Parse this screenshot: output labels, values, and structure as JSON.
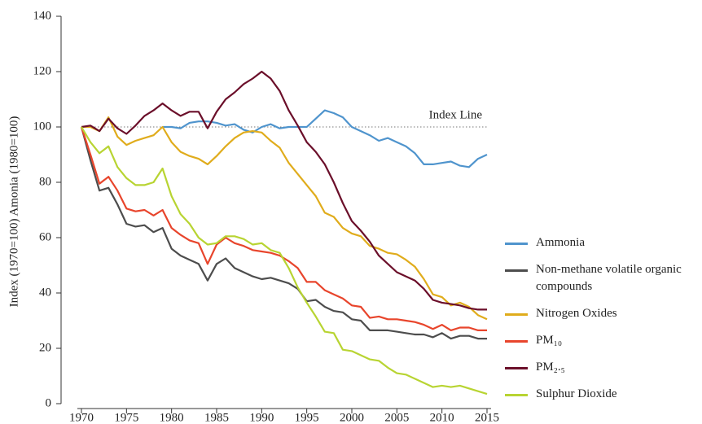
{
  "chart_data": {
    "type": "line",
    "ylabel": "Index (1970=100)  Amonia (1980=100)",
    "x": [
      1970,
      1971,
      1972,
      1973,
      1974,
      1975,
      1976,
      1977,
      1978,
      1979,
      1980,
      1981,
      1982,
      1983,
      1984,
      1985,
      1986,
      1987,
      1988,
      1989,
      1990,
      1991,
      1992,
      1993,
      1994,
      1995,
      1996,
      1997,
      1998,
      1999,
      2000,
      2001,
      2002,
      2003,
      2004,
      2005,
      2006,
      2007,
      2008,
      2009,
      2010,
      2011,
      2012,
      2013,
      2014,
      2015
    ],
    "xlim": [
      1970,
      2015
    ],
    "xticks": [
      1970,
      1975,
      1980,
      1985,
      1990,
      1995,
      2000,
      2005,
      2010,
      2015
    ],
    "ylim": [
      0,
      140
    ],
    "yticks": [
      0,
      20,
      40,
      60,
      80,
      100,
      120,
      140
    ],
    "index_line": {
      "label": "Index Line",
      "value": 100
    },
    "series": [
      {
        "name": "Ammonia",
        "color": "#4f94cd",
        "values": [
          null,
          null,
          null,
          null,
          null,
          null,
          null,
          null,
          null,
          100,
          100,
          99.5,
          101.5,
          102,
          102,
          101.5,
          100.5,
          101,
          99,
          98,
          100,
          101,
          99.5,
          100,
          100,
          100,
          103,
          106,
          105,
          103.5,
          100,
          98.5,
          97,
          95,
          96,
          94.5,
          93,
          90.5,
          86.5,
          86.5,
          87,
          87.5,
          86,
          85.5,
          88.5,
          90
        ]
      },
      {
        "name": "Non-methane volatile organic compounds",
        "color": "#4d4d4d",
        "values": [
          100,
          88,
          77,
          78,
          72,
          65,
          64,
          64.5,
          62,
          63.5,
          56,
          53.5,
          52,
          50.5,
          44.5,
          50.5,
          52.5,
          49,
          47.5,
          46,
          45,
          45.5,
          44.5,
          43.5,
          41.5,
          37,
          37.5,
          35,
          33.5,
          33,
          30.5,
          30,
          26.5,
          26.5,
          26.5,
          26,
          25.5,
          25,
          25,
          24,
          25.5,
          23.5,
          24.5,
          24.5,
          23.5,
          23.5
        ]
      },
      {
        "name": "Nitrogen Oxides",
        "color": "#e0ac1c",
        "values": [
          100,
          100,
          98.5,
          103.5,
          96.5,
          93.5,
          95,
          96,
          97,
          100,
          94.5,
          91,
          89.5,
          88.5,
          86.5,
          89.5,
          93,
          96,
          98,
          98.5,
          98,
          95,
          92.5,
          87,
          83,
          79,
          75,
          69,
          67.5,
          63.5,
          61.5,
          60.5,
          57,
          56,
          54.5,
          54,
          52,
          49.5,
          45,
          39.5,
          38.5,
          35.5,
          36.5,
          35,
          32,
          30.5
        ]
      },
      {
        "name": "PM₁₀",
        "color": "#e8452c",
        "values": [
          100,
          90,
          79.5,
          82,
          77,
          70.5,
          69.5,
          70,
          68,
          70,
          63.5,
          61,
          59,
          58,
          50.5,
          57.5,
          60,
          58,
          57,
          55.5,
          55,
          54.5,
          53.5,
          51.5,
          49,
          44,
          44,
          41,
          39.5,
          38,
          35.5,
          35,
          31,
          31.5,
          30.5,
          30.5,
          30,
          29.5,
          28.5,
          27,
          28.5,
          26.5,
          27.5,
          27.5,
          26.5,
          26.5
        ]
      },
      {
        "name": "PM₂.₅",
        "color": "#6b0f2a",
        "values": [
          100,
          100.5,
          98.5,
          103,
          99.5,
          97.5,
          100.5,
          104,
          106,
          108.5,
          106,
          104,
          105.5,
          105.5,
          99.5,
          105.5,
          110,
          112.5,
          115.5,
          117.5,
          120,
          117.5,
          113,
          106,
          100.5,
          94.5,
          91,
          86.5,
          80,
          72.5,
          66,
          62.5,
          58.5,
          53.5,
          50.5,
          47.5,
          46,
          44.5,
          41.5,
          37.5,
          36.5,
          36,
          35.5,
          34.5,
          34,
          34
        ]
      },
      {
        "name": "Sulphur Dioxide",
        "color": "#b8d432",
        "values": [
          100,
          94.5,
          90.5,
          93,
          85.5,
          81.5,
          79,
          79,
          80,
          85,
          75,
          68.5,
          65,
          60,
          57.5,
          58,
          60.5,
          60.5,
          59.5,
          57.5,
          58,
          55.5,
          54.5,
          49,
          42,
          36.5,
          31.5,
          26,
          25.5,
          19.5,
          19,
          17.5,
          16,
          15.5,
          13,
          11,
          10.5,
          9,
          7.5,
          6,
          6.5,
          6,
          6.5,
          5.5,
          4.5,
          3.5
        ]
      }
    ]
  }
}
